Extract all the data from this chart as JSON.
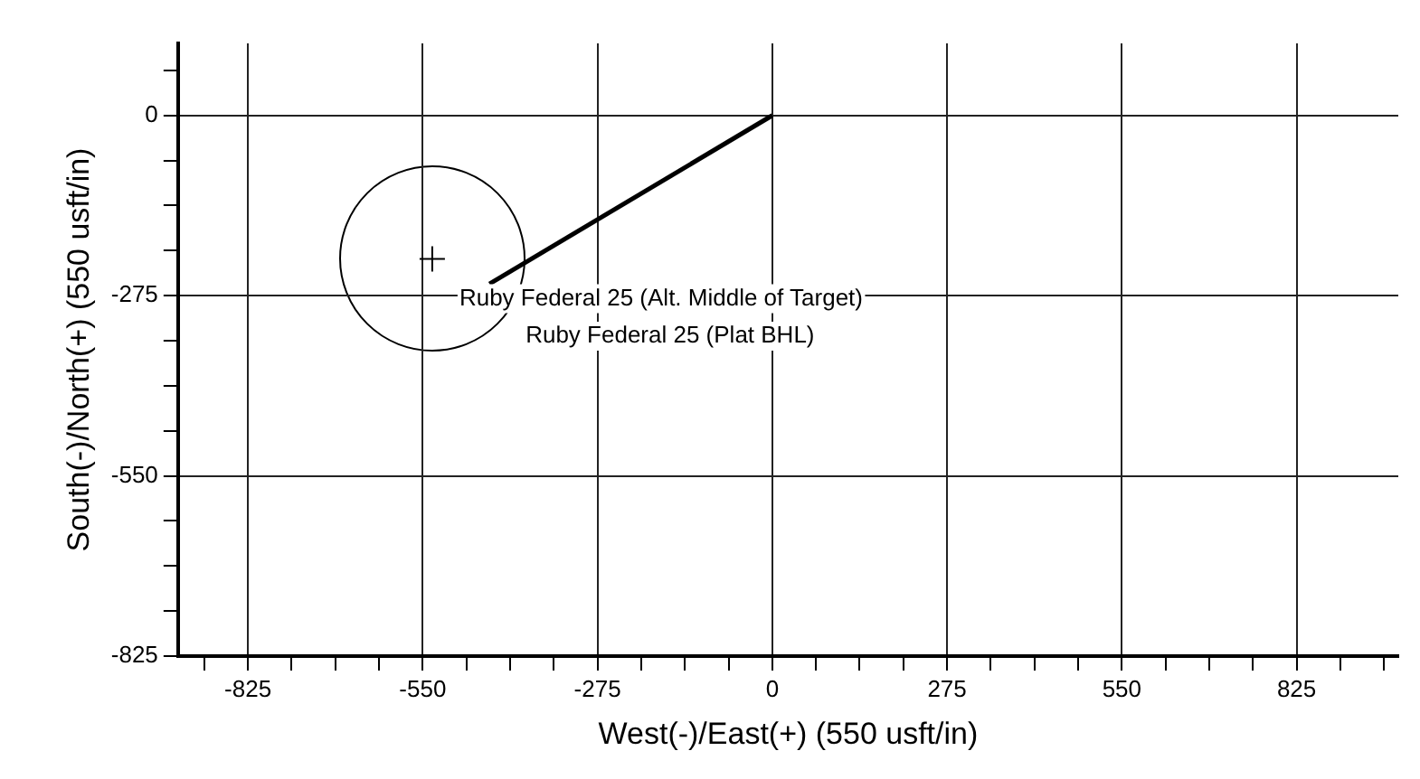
{
  "chart_data": {
    "type": "scatter",
    "xlabel": "West(-)/East(+) (550 usft/in)",
    "ylabel": "South(-)/North(+) (550 usft/in)",
    "xlim": [
      -935,
      985
    ],
    "ylim": [
      -825,
      110
    ],
    "xticks": [
      {
        "value": -893.75,
        "label": null
      },
      -825,
      {
        "value": -756.25,
        "label": null
      },
      {
        "value": -687.5,
        "label": null
      },
      {
        "value": -618.75,
        "label": null
      },
      -550,
      {
        "value": -481.25,
        "label": null
      },
      {
        "value": -412.5,
        "label": null
      },
      {
        "value": -343.75,
        "label": null
      },
      -275,
      {
        "value": -206.25,
        "label": null
      },
      {
        "value": -137.5,
        "label": null
      },
      {
        "value": -68.75,
        "label": null
      },
      0,
      {
        "value": 68.75,
        "label": null
      },
      {
        "value": 137.5,
        "label": null
      },
      {
        "value": 206.25,
        "label": null
      },
      275,
      {
        "value": 343.75,
        "label": null
      },
      {
        "value": 412.5,
        "label": null
      },
      {
        "value": 481.25,
        "label": null
      },
      550,
      {
        "value": 618.75,
        "label": null
      },
      {
        "value": 687.5,
        "label": null
      },
      {
        "value": 756.25,
        "label": null
      },
      825,
      {
        "value": 893.75,
        "label": null
      },
      {
        "value": 962.5,
        "label": null
      }
    ],
    "yticks": [
      {
        "value": 68.75,
        "label": null
      },
      0,
      {
        "value": -68.75,
        "label": null
      },
      {
        "value": -137.5,
        "label": null
      },
      {
        "value": -206.25,
        "label": null
      },
      -275,
      {
        "value": -343.75,
        "label": null
      },
      {
        "value": -412.5,
        "label": null
      },
      {
        "value": -481.25,
        "label": null
      },
      -550,
      {
        "value": -618.75,
        "label": null
      },
      {
        "value": -687.5,
        "label": null
      },
      {
        "value": -756.25,
        "label": null
      },
      -825
    ],
    "grid": true,
    "legend": false,
    "series": [
      {
        "type": "line",
        "color": "#000000",
        "marker": "none",
        "line_style": "solid",
        "x": [
          0,
          -445
        ],
        "values": [
          0,
          -257
        ]
      },
      {
        "type": "scatter",
        "color": "#000000",
        "marker": "cross",
        "x": [
          -535
        ],
        "values": [
          -219
        ]
      }
    ],
    "annotations": [
      {
        "text": "Ruby Federal 25 (Alt. Middle of Target)",
        "x": -535,
        "y": -219
      },
      {
        "text": "Ruby Federal 25 (Plat BHL)",
        "x": -445,
        "y": -257
      }
    ]
  }
}
